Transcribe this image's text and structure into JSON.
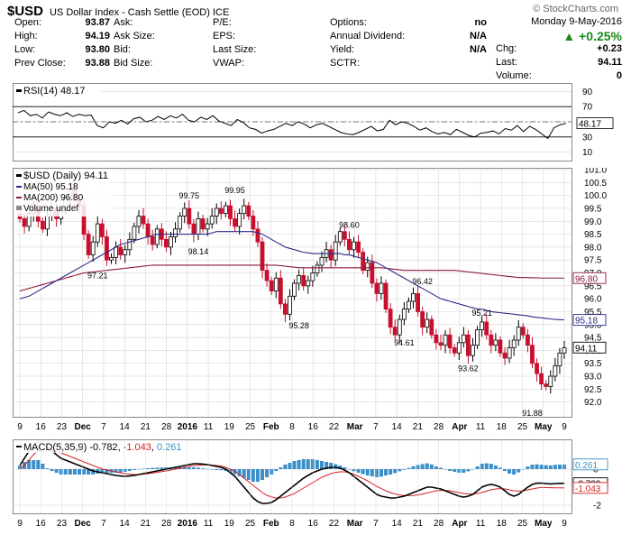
{
  "header": {
    "symbol": "$USD",
    "description": "US Dollar Index - Cash Settle (EOD)",
    "exchange": "ICE",
    "brand": "© StockCharts.com",
    "date": "Monday 9-May-2016",
    "change_pct": "▲ +0.25%",
    "chg_label": "Chg:",
    "chg_value": "+0.23",
    "last_label": "Last:",
    "last_value": "94.11",
    "volume_label": "Volume:",
    "volume_value": "0"
  },
  "quote": {
    "rows": [
      [
        {
          "l": "Open:",
          "v": "93.87"
        },
        {
          "l": "Ask:",
          "v": ""
        },
        {
          "l": "P/E:",
          "v": ""
        },
        {
          "l": "Options:",
          "v": "no"
        }
      ],
      [
        {
          "l": "High:",
          "v": "94.19"
        },
        {
          "l": "Ask Size:",
          "v": ""
        },
        {
          "l": "EPS:",
          "v": ""
        },
        {
          "l": "Annual Dividend:",
          "v": "N/A"
        }
      ],
      [
        {
          "l": "Low:",
          "v": "93.80"
        },
        {
          "l": "Bid:",
          "v": ""
        },
        {
          "l": "Last Size:",
          "v": ""
        },
        {
          "l": "Yield:",
          "v": "N/A"
        }
      ],
      [
        {
          "l": "Prev Close:",
          "v": "93.88"
        },
        {
          "l": "Bid Size:",
          "v": ""
        },
        {
          "l": "VWAP:",
          "v": ""
        },
        {
          "l": "SCTR:",
          "v": ""
        }
      ]
    ]
  },
  "colors": {
    "up": "#000000",
    "down": "#c8102e",
    "ma50": "#2a2a8a",
    "ma200": "#8b1a3a",
    "macd": "#000000",
    "signal": "#d62020",
    "hist": "#3a8fc8",
    "grid": "#d0d0d0"
  },
  "chart_data": [
    {
      "type": "line",
      "title": "RSI(14) 48.17",
      "ylim": [
        0,
        100
      ],
      "yticks": [
        10,
        30,
        50,
        70,
        90
      ],
      "levels": [
        30,
        70
      ],
      "last": "48.17",
      "values": [
        62,
        65,
        58,
        60,
        55,
        63,
        60,
        58,
        62,
        57,
        60,
        58,
        59,
        45,
        42,
        50,
        48,
        52,
        47,
        54,
        56,
        50,
        52,
        57,
        53,
        58,
        55,
        60,
        52,
        50,
        56,
        53,
        58,
        51,
        48,
        45,
        53,
        49,
        42,
        40,
        35,
        38,
        40,
        44,
        48,
        45,
        50,
        47,
        42,
        46,
        48,
        44,
        40,
        36,
        34,
        33,
        36,
        40,
        44,
        38,
        40,
        52,
        46,
        50,
        48,
        44,
        39,
        42,
        37,
        34,
        36,
        33,
        40,
        36,
        32,
        30,
        35,
        36,
        38,
        34,
        41,
        39,
        45,
        37,
        44,
        40,
        34,
        28,
        42,
        46,
        48
      ]
    },
    {
      "type": "candlestick",
      "title": "$USD (Daily) 94.11",
      "ylim": [
        91.5,
        101.0
      ],
      "yticks": [
        92.0,
        92.5,
        93.0,
        93.5,
        94.0,
        94.5,
        95.0,
        95.5,
        96.0,
        96.5,
        97.0,
        97.5,
        98.0,
        98.5,
        99.0,
        99.5,
        100.0,
        100.5,
        101.0
      ],
      "x_ticks": [
        "9",
        "16",
        "23",
        "Dec",
        "7",
        "14",
        "21",
        "28",
        "2016",
        "11",
        "19",
        "25",
        "Feb",
        "8",
        "16",
        "22",
        "Mar",
        "7",
        "14",
        "21",
        "28",
        "Apr",
        "11",
        "18",
        "25",
        "May",
        "9"
      ],
      "series": [
        {
          "name": "MA(50) 95.18",
          "last": "95.18"
        },
        {
          "name": "MA(200) 96.80",
          "last": "96.80"
        },
        {
          "name": "Volume undef"
        }
      ],
      "annotations": [
        {
          "text": "99.75",
          "x": 37,
          "y": 99.75
        },
        {
          "text": "99.95",
          "x": 47,
          "y": 99.95
        },
        {
          "text": "97.21",
          "x": 17,
          "y": 97.21
        },
        {
          "text": "98.14",
          "x": 39,
          "y": 98.14
        },
        {
          "text": "98.60",
          "x": 72,
          "y": 98.6
        },
        {
          "text": "95.28",
          "x": 61,
          "y": 95.28
        },
        {
          "text": "96.42",
          "x": 88,
          "y": 96.42
        },
        {
          "text": "94.61",
          "x": 84,
          "y": 94.61
        },
        {
          "text": "95.21",
          "x": 101,
          "y": 95.21
        },
        {
          "text": "93.62",
          "x": 98,
          "y": 93.62
        },
        {
          "text": "91.88",
          "x": 112,
          "y": 91.88
        }
      ],
      "close": [
        99.1,
        98.8,
        99.3,
        99.6,
        99.0,
        98.7,
        99.2,
        99.5,
        99.1,
        99.4,
        99.9,
        100.2,
        99.8,
        99.6,
        98.5,
        97.7,
        98.2,
        98.9,
        98.4,
        97.5,
        97.6,
        98.0,
        97.7,
        97.9,
        98.3,
        98.8,
        99.2,
        98.9,
        98.4,
        98.1,
        98.7,
        98.3,
        98.0,
        98.4,
        98.7,
        99.2,
        99.5,
        98.9,
        98.5,
        99.1,
        98.7,
        98.9,
        99.2,
        99.5,
        99.3,
        99.6,
        99.1,
        98.8,
        99.3,
        99.6,
        99.2,
        98.7,
        98.2,
        97.1,
        96.7,
        96.3,
        96.8,
        95.8,
        95.4,
        96.1,
        96.6,
        96.9,
        96.5,
        96.7,
        97.0,
        97.3,
        97.6,
        97.9,
        97.5,
        98.2,
        98.6,
        98.3,
        97.9,
        98.2,
        97.8,
        97.1,
        97.4,
        96.6,
        96.2,
        96.6,
        95.6,
        94.9,
        94.6,
        95.2,
        95.6,
        95.9,
        96.2,
        95.5,
        94.9,
        95.2,
        94.6,
        94.3,
        94.2,
        94.6,
        94.1,
        93.9,
        94.3,
        94.6,
        93.8,
        94.2,
        94.8,
        95.1,
        94.6,
        94.2,
        94.4,
        93.9,
        93.7,
        94.1,
        94.4,
        94.9,
        94.6,
        94.2,
        93.5,
        93.1,
        92.7,
        92.6,
        93.0,
        93.4,
        93.9,
        94.1
      ],
      "ma50": [
        96.0,
        96.05,
        96.1,
        96.2,
        96.3,
        96.4,
        96.5,
        96.6,
        96.7,
        96.8,
        96.9,
        97.0,
        97.1,
        97.2,
        97.3,
        97.4,
        97.5,
        97.6,
        97.7,
        97.8,
        97.9,
        98.0,
        98.1,
        98.15,
        98.2,
        98.25,
        98.3,
        98.35,
        98.4,
        98.45,
        98.5,
        98.5,
        98.5,
        98.5,
        98.5,
        98.5,
        98.5,
        98.5,
        98.5,
        98.5,
        98.5,
        98.5,
        98.55,
        98.6,
        98.6,
        98.6,
        98.6,
        98.6,
        98.6,
        98.6,
        98.6,
        98.6,
        98.55,
        98.5,
        98.4,
        98.3,
        98.2,
        98.1,
        98.0,
        97.95,
        97.9,
        97.85,
        97.8,
        97.78,
        97.75,
        97.75,
        97.75,
        97.75,
        97.75,
        97.75,
        97.75,
        97.7,
        97.7,
        97.65,
        97.6,
        97.55,
        97.5,
        97.45,
        97.4,
        97.3,
        97.2,
        97.1,
        97.0,
        96.9,
        96.8,
        96.7,
        96.6,
        96.5,
        96.4,
        96.3,
        96.2,
        96.1,
        96.0,
        95.95,
        95.9,
        95.85,
        95.8,
        95.75,
        95.7,
        95.65,
        95.6,
        95.6,
        95.55,
        95.5,
        95.48,
        95.46,
        95.44,
        95.42,
        95.4,
        95.38,
        95.36,
        95.34,
        95.3,
        95.28,
        95.26,
        95.24,
        95.22,
        95.2,
        95.19,
        95.18
      ],
      "ma200": [
        96.3,
        96.35,
        96.4,
        96.45,
        96.5,
        96.55,
        96.6,
        96.65,
        96.7,
        96.75,
        96.8,
        96.85,
        96.9,
        96.95,
        97.0,
        97.02,
        97.04,
        97.06,
        97.08,
        97.1,
        97.12,
        97.14,
        97.16,
        97.18,
        97.2,
        97.22,
        97.24,
        97.26,
        97.28,
        97.3,
        97.3,
        97.3,
        97.3,
        97.3,
        97.3,
        97.3,
        97.3,
        97.3,
        97.3,
        97.3,
        97.3,
        97.3,
        97.3,
        97.3,
        97.3,
        97.3,
        97.3,
        97.3,
        97.3,
        97.3,
        97.3,
        97.3,
        97.3,
        97.3,
        97.3,
        97.3,
        97.3,
        97.28,
        97.26,
        97.24,
        97.22,
        97.2,
        97.2,
        97.2,
        97.2,
        97.2,
        97.2,
        97.2,
        97.2,
        97.2,
        97.2,
        97.2,
        97.2,
        97.2,
        97.2,
        97.2,
        97.2,
        97.2,
        97.2,
        97.2,
        97.18,
        97.16,
        97.14,
        97.12,
        97.1,
        97.1,
        97.1,
        97.1,
        97.1,
        97.1,
        97.1,
        97.1,
        97.1,
        97.1,
        97.1,
        97.1,
        97.08,
        97.06,
        97.04,
        97.02,
        97.0,
        96.98,
        96.96,
        96.94,
        96.92,
        96.9,
        96.88,
        96.86,
        96.84,
        96.82,
        96.82,
        96.82,
        96.81,
        96.81,
        96.8,
        96.8,
        96.8,
        96.8,
        96.8,
        96.8
      ]
    },
    {
      "type": "line",
      "title": "MACD(5,35,9) -0.782, -1.043, 0.261",
      "ylim": [
        -2.4,
        1.6
      ],
      "yticks": [
        -2,
        0
      ],
      "labels": {
        "name": "MACD(5,35,9)",
        "macd": "-0.782",
        "signal": "-1.043",
        "hist": "0.261"
      },
      "series": [
        {
          "name": "MACD"
        },
        {
          "name": "Signal"
        },
        {
          "name": "Histogram"
        }
      ],
      "macd": [
        0.2,
        0.6,
        1.0,
        1.3,
        1.5,
        1.4,
        1.2,
        1.0,
        0.8,
        0.6,
        0.5,
        0.4,
        0.3,
        0.2,
        0.1,
        0.0,
        -0.1,
        -0.15,
        -0.2,
        -0.25,
        -0.3,
        -0.35,
        -0.38,
        -0.4,
        -0.38,
        -0.35,
        -0.3,
        -0.25,
        -0.2,
        -0.15,
        -0.1,
        -0.05,
        0.0,
        0.05,
        0.1,
        0.15,
        0.2,
        0.25,
        0.3,
        0.3,
        0.28,
        0.25,
        0.2,
        0.15,
        0.1,
        0.0,
        -0.2,
        -0.4,
        -0.7,
        -1.0,
        -1.3,
        -1.6,
        -1.8,
        -1.9,
        -1.9,
        -1.85,
        -1.7,
        -1.5,
        -1.3,
        -1.1,
        -0.9,
        -0.7,
        -0.5,
        -0.35,
        -0.2,
        -0.1,
        0.0,
        0.05,
        0.1,
        0.1,
        0.05,
        -0.05,
        -0.2,
        -0.4,
        -0.6,
        -0.8,
        -1.0,
        -1.2,
        -1.4,
        -1.5,
        -1.55,
        -1.6,
        -1.6,
        -1.55,
        -1.5,
        -1.4,
        -1.3,
        -1.2,
        -1.1,
        -1.0,
        -1.0,
        -1.05,
        -1.1,
        -1.2,
        -1.3,
        -1.4,
        -1.5,
        -1.55,
        -1.5,
        -1.4,
        -1.2,
        -1.0,
        -0.9,
        -0.85,
        -0.9,
        -1.0,
        -1.2,
        -1.4,
        -1.5,
        -1.4,
        -1.2,
        -1.0,
        -0.85,
        -0.78,
        -0.78,
        -0.8,
        -0.82,
        -0.8,
        -0.79,
        -0.782
      ],
      "signal": [
        0.0,
        0.2,
        0.5,
        0.8,
        1.0,
        1.1,
        1.15,
        1.1,
        1.0,
        0.9,
        0.8,
        0.7,
        0.6,
        0.5,
        0.4,
        0.3,
        0.2,
        0.1,
        0.0,
        -0.05,
        -0.1,
        -0.15,
        -0.2,
        -0.25,
        -0.28,
        -0.3,
        -0.3,
        -0.28,
        -0.25,
        -0.22,
        -0.18,
        -0.14,
        -0.1,
        -0.05,
        0.0,
        0.05,
        0.1,
        0.15,
        0.2,
        0.22,
        0.24,
        0.24,
        0.22,
        0.2,
        0.16,
        0.1,
        0.0,
        -0.12,
        -0.3,
        -0.5,
        -0.7,
        -0.9,
        -1.1,
        -1.3,
        -1.45,
        -1.55,
        -1.6,
        -1.6,
        -1.55,
        -1.45,
        -1.35,
        -1.2,
        -1.05,
        -0.9,
        -0.75,
        -0.6,
        -0.45,
        -0.35,
        -0.25,
        -0.18,
        -0.15,
        -0.15,
        -0.2,
        -0.28,
        -0.4,
        -0.52,
        -0.65,
        -0.8,
        -0.95,
        -1.08,
        -1.2,
        -1.3,
        -1.38,
        -1.43,
        -1.46,
        -1.47,
        -1.46,
        -1.43,
        -1.38,
        -1.32,
        -1.26,
        -1.2,
        -1.18,
        -1.18,
        -1.2,
        -1.25,
        -1.3,
        -1.35,
        -1.38,
        -1.38,
        -1.35,
        -1.3,
        -1.22,
        -1.15,
        -1.1,
        -1.08,
        -1.1,
        -1.15,
        -1.2,
        -1.22,
        -1.2,
        -1.15,
        -1.1,
        -1.05,
        -1.02,
        -1.02,
        -1.03,
        -1.04,
        -1.04,
        -1.043
      ]
    }
  ]
}
